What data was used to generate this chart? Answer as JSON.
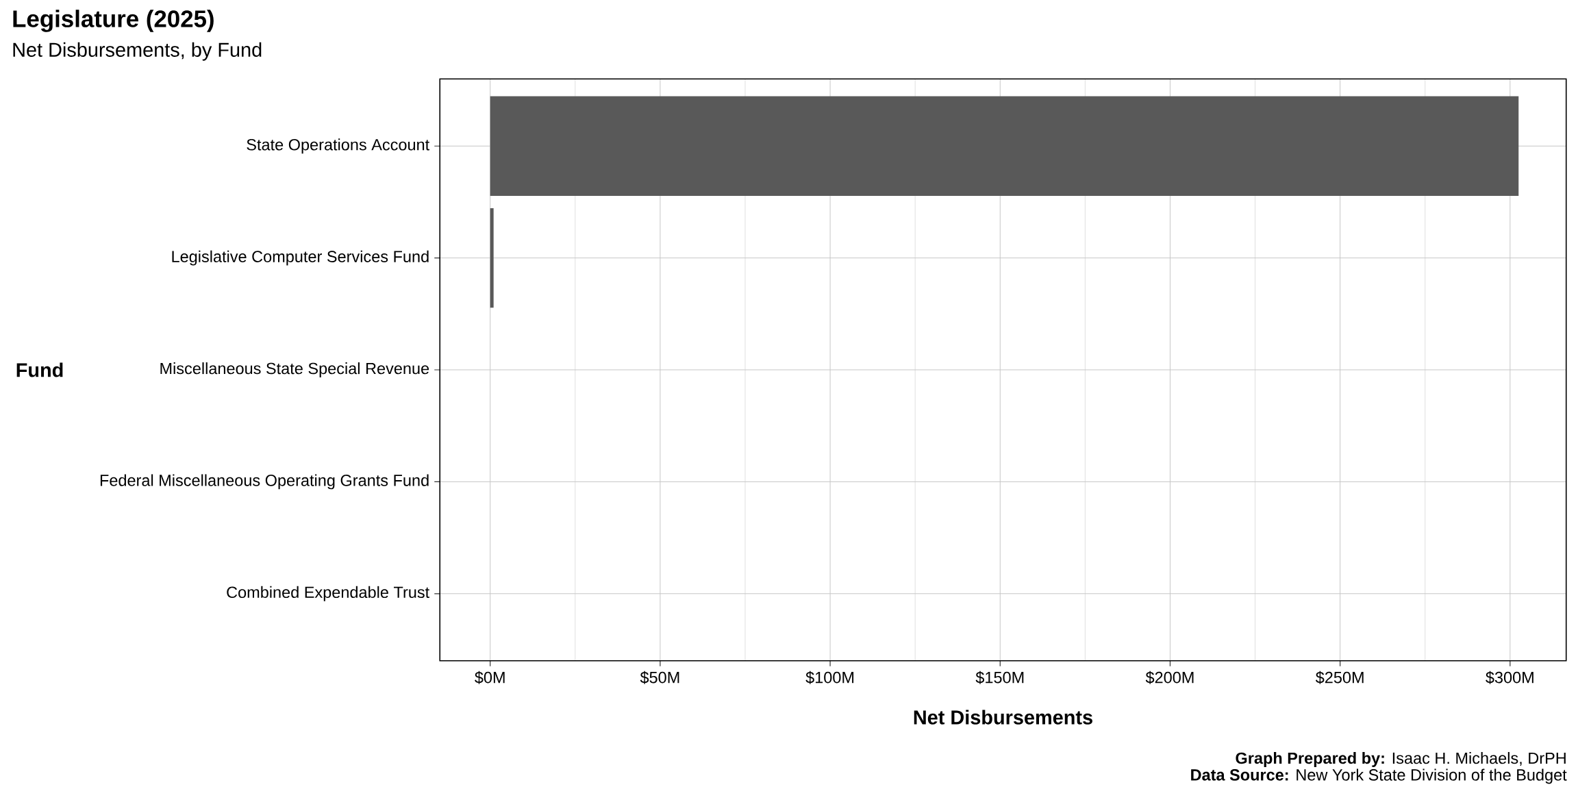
{
  "chart_data": {
    "type": "bar",
    "orientation": "horizontal",
    "title": "Legislature (2025)",
    "subtitle": "Net Disbursements, by Fund",
    "xlabel": "Net Disbursements",
    "ylabel": "Fund",
    "categories": [
      "State Operations Account",
      "Legislative Computer Services Fund",
      "Miscellaneous State Special Revenue",
      "Federal Miscellaneous Operating Grants Fund",
      "Combined Expendable Trust"
    ],
    "values": [
      302.5,
      1.0,
      0,
      0,
      0
    ],
    "color": "#595959",
    "xlim": [
      -14.8,
      316.5
    ],
    "xticks": [
      {
        "value": 0,
        "label": "$0M"
      },
      {
        "value": 50,
        "label": "$50M"
      },
      {
        "value": 100,
        "label": "$100M"
      },
      {
        "value": 150,
        "label": "$150M"
      },
      {
        "value": 200,
        "label": "$200M"
      },
      {
        "value": 250,
        "label": "$250M"
      },
      {
        "value": 300,
        "label": "$300M"
      }
    ],
    "grid": true,
    "annotations": [
      "**Graph Prepared by:** Isaac H. Michaels, DrPH",
      "**Data Source:** New York State Division of the Budget"
    ]
  }
}
